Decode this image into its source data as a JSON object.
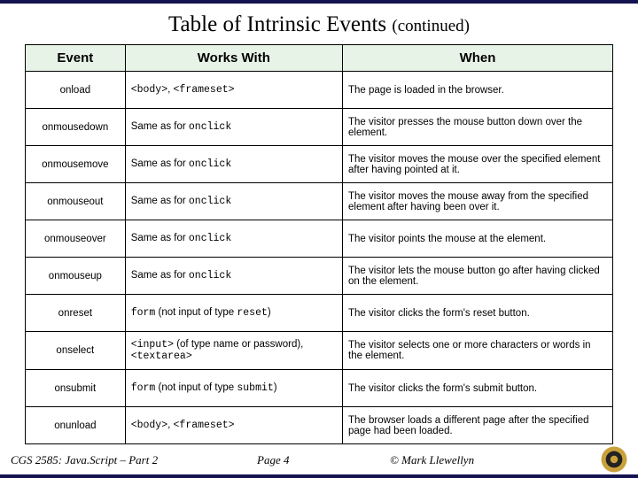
{
  "title": {
    "main": "Table of Intrinsic Events",
    "suffix": "(continued)"
  },
  "columns": [
    "Event",
    "Works With",
    "When"
  ],
  "rows": [
    {
      "event": "onload",
      "works": "<code>&lt;body&gt;</code>, <code>&lt;frameset&gt;</code>",
      "when": "The page is loaded in the browser."
    },
    {
      "event": "onmousedown",
      "works": "Same as for <code>onclick</code>",
      "when": "The visitor presses the mouse button down over the element."
    },
    {
      "event": "onmousemove",
      "works": "Same as for <code>onclick</code>",
      "when": "The visitor moves the mouse over the specified element after having pointed at it."
    },
    {
      "event": "onmouseout",
      "works": "Same as for <code>onclick</code>",
      "when": "The visitor moves the mouse away from the specified element after having been over it."
    },
    {
      "event": "onmouseover",
      "works": "Same as for <code>onclick</code>",
      "when": "The visitor points the mouse at the element."
    },
    {
      "event": "onmouseup",
      "works": "Same as for <code>onclick</code>",
      "when": "The visitor lets the mouse button go after having clicked on the element."
    },
    {
      "event": "onreset",
      "works": "<code>form</code> (not input of type <code>reset</code>)",
      "when": "The visitor clicks the form's reset button."
    },
    {
      "event": "onselect",
      "works": "<code>&lt;input&gt;</code> (of type name or password), <code>&lt;textarea&gt;</code>",
      "when": "The visitor selects one or more characters or words in the element."
    },
    {
      "event": "onsubmit",
      "works": "<code>form</code> (not input of type <code>submit</code>)",
      "when": "The visitor clicks the form's submit button."
    },
    {
      "event": "onunload",
      "works": "<code>&lt;body&gt;</code>, <code>&lt;frameset&gt;</code>",
      "when": "The browser loads a different page after the specified page had been loaded."
    }
  ],
  "footer": {
    "course": "CGS 2585: Java.Script – Part 2",
    "page": "Page 4",
    "author": "© Mark Llewellyn"
  },
  "style": {
    "header_bg": "#e8f3e8",
    "border_color": "#000000",
    "accent_bar": "#14134f",
    "logo_colors": {
      "outer": "#c9a13b",
      "inner_dark": "#222222"
    }
  }
}
